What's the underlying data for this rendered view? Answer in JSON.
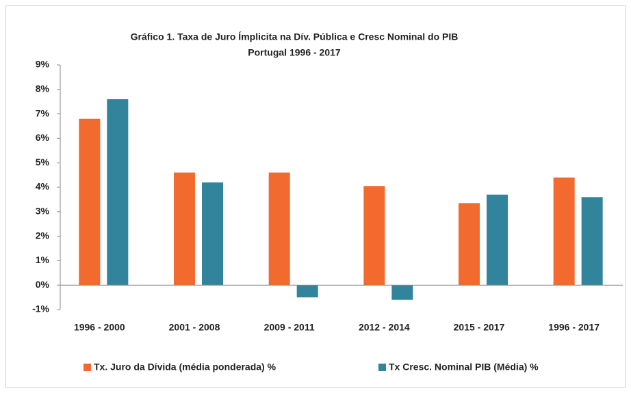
{
  "chart_data": {
    "type": "bar",
    "title": "Gráfico 1. Taxa de Juro Ímplicita na Dív. Pública e Cresc Nominal do PIB",
    "subtitle": "Portugal 1996 - 2017",
    "categories": [
      "1996 - 2000",
      "2001 - 2008",
      "2009 - 2011",
      "2012 - 2014",
      "2015 - 2017",
      "1996 - 2017"
    ],
    "series": [
      {
        "name": "Tx. Juro da Dívida (média ponderada) %",
        "color": "#f26a2e",
        "values": [
          6.8,
          4.6,
          4.6,
          4.05,
          3.35,
          4.4
        ]
      },
      {
        "name": "Tx Cresc. Nominal PIB (Média) %",
        "color": "#31849b",
        "values": [
          7.6,
          4.2,
          -0.5,
          -0.6,
          3.7,
          3.6
        ]
      }
    ],
    "ylim": [
      -1,
      9
    ],
    "yticks": [
      {
        "value": -1,
        "label": "-1%"
      },
      {
        "value": 0,
        "label": "0%"
      },
      {
        "value": 1,
        "label": "1%"
      },
      {
        "value": 2,
        "label": "2%"
      },
      {
        "value": 3,
        "label": "3%"
      },
      {
        "value": 4,
        "label": "4%"
      },
      {
        "value": 5,
        "label": "5%"
      },
      {
        "value": 6,
        "label": "6%"
      },
      {
        "value": 7,
        "label": "7%"
      },
      {
        "value": 8,
        "label": "8%"
      },
      {
        "value": 9,
        "label": "9%"
      }
    ],
    "grid": false,
    "legend": "bottom"
  }
}
